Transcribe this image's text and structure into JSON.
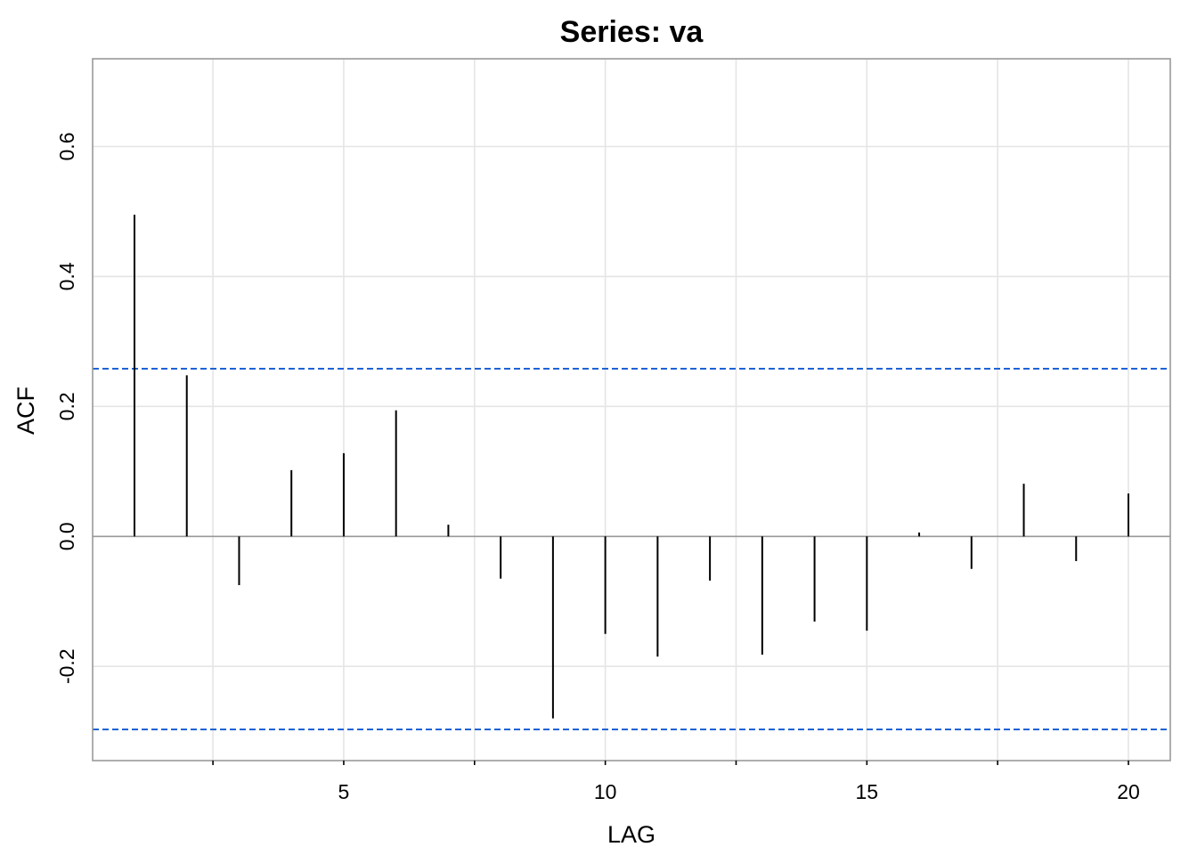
{
  "chart_data": {
    "type": "bar",
    "title": "Series:  va",
    "xlabel": "LAG",
    "ylabel": "ACF",
    "x": [
      1,
      2,
      3,
      4,
      5,
      6,
      7,
      8,
      9,
      10,
      11,
      12,
      13,
      14,
      15,
      16,
      17,
      18,
      19,
      20
    ],
    "values": [
      0.495,
      0.248,
      -0.075,
      0.102,
      0.128,
      0.194,
      0.018,
      -0.065,
      -0.28,
      -0.15,
      -0.185,
      -0.068,
      -0.182,
      -0.131,
      -0.145,
      0.006,
      -0.05,
      0.081,
      -0.038,
      0.066
    ],
    "xlim": [
      0.2,
      20.8
    ],
    "ylim": [
      -0.345,
      0.735
    ],
    "x_ticks": [
      5,
      10,
      15,
      20
    ],
    "x_tick_labels": [
      "5",
      "10",
      "15",
      "20"
    ],
    "x_minor_ticks": [
      2.5,
      7.5,
      12.5,
      17.5
    ],
    "y_ticks": [
      -0.2,
      0.0,
      0.2,
      0.4,
      0.6
    ],
    "y_tick_labels": [
      "-0.2",
      "0.0",
      "0.2",
      "0.4",
      "0.6"
    ],
    "confidence_bounds": [
      0.258,
      -0.297
    ],
    "grid": true,
    "colors": {
      "bars": "#000000",
      "bounds": "#1f63d6",
      "grid": "#e5e5e5",
      "zero_line": "#999999",
      "frame": "#999999"
    }
  }
}
